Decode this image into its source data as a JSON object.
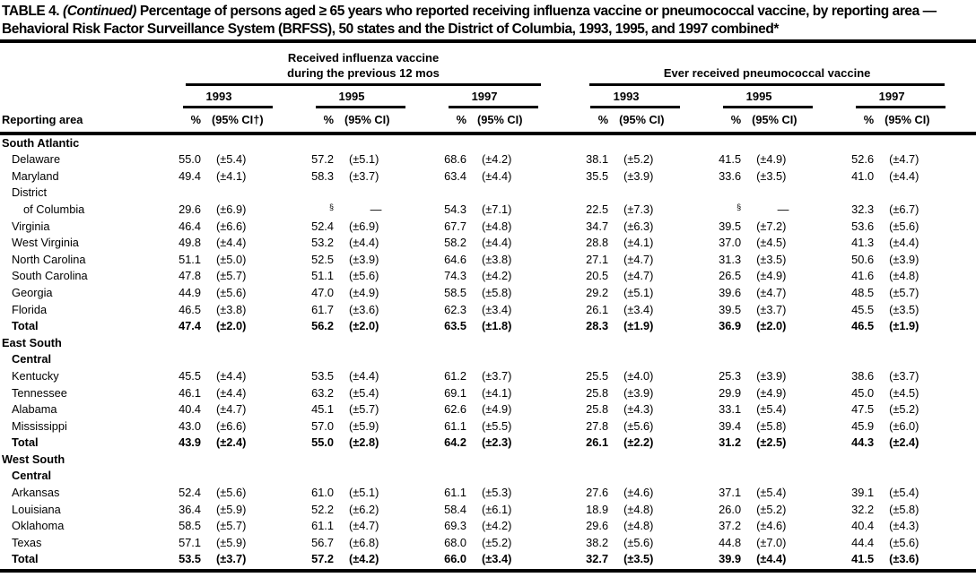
{
  "title": {
    "prefix": "TABLE 4.",
    "continued": "(Continued)",
    "rest": "Percentage of persons aged ≥ 65 years who reported receiving influenza vaccine or pneumococcal vaccine, by reporting area — Behavioral Risk Factor Surveillance System (BRFSS), 50 states and the District of Columbia, 1993, 1995, and 1997 combined*"
  },
  "header": {
    "reporting_area_label": "Reporting area",
    "pct_label": "%",
    "groups": [
      {
        "title_lines": [
          "Received influenza vaccine",
          "during the previous 12 mos"
        ],
        "years": [
          "1993",
          "1995",
          "1997"
        ],
        "ci_labels": [
          "(95% CI†)",
          "(95% CI)",
          "(95% CI)"
        ]
      },
      {
        "title_lines": [
          "Ever received pneumococcal vaccine"
        ],
        "years": [
          "1993",
          "1995",
          "1997"
        ],
        "ci_labels": [
          "(95% CI)",
          "(95% CI)",
          "(95% CI)"
        ]
      }
    ]
  },
  "footnote_symbols": {
    "missing": "§",
    "dash": "—"
  },
  "rows": [
    {
      "t": "sec",
      "label": "South Atlantic"
    },
    {
      "t": "state",
      "label": "Delaware",
      "c": [
        "55.0",
        "(±5.4)",
        "57.2",
        "(±5.1)",
        "68.6",
        "(±4.2)",
        "38.1",
        "(±5.2)",
        "41.5",
        "(±4.9)",
        "52.6",
        "(±4.7)"
      ]
    },
    {
      "t": "state",
      "label": "Maryland",
      "c": [
        "49.4",
        "(±4.1)",
        "58.3",
        "(±3.7)",
        "63.4",
        "(±4.4)",
        "35.5",
        "(±3.9)",
        "33.6",
        "(±3.5)",
        "41.0",
        "(±4.4)"
      ]
    },
    {
      "t": "lbl",
      "label": "District"
    },
    {
      "t": "state",
      "label": "of Columbia",
      "ind": 2,
      "c": [
        "29.6",
        "(±6.9)",
        "§",
        "—",
        "54.3",
        "(±7.1)",
        "22.5",
        "(±7.3)",
        "§",
        "—",
        "32.3",
        "(±6.7)"
      ]
    },
    {
      "t": "state",
      "label": "Virginia",
      "c": [
        "46.4",
        "(±6.6)",
        "52.4",
        "(±6.9)",
        "67.7",
        "(±4.8)",
        "34.7",
        "(±6.3)",
        "39.5",
        "(±7.2)",
        "53.6",
        "(±5.6)"
      ]
    },
    {
      "t": "state",
      "label": "West Virginia",
      "c": [
        "49.8",
        "(±4.4)",
        "53.2",
        "(±4.4)",
        "58.2",
        "(±4.4)",
        "28.8",
        "(±4.1)",
        "37.0",
        "(±4.5)",
        "41.3",
        "(±4.4)"
      ]
    },
    {
      "t": "state",
      "label": "North Carolina",
      "c": [
        "51.1",
        "(±5.0)",
        "52.5",
        "(±3.9)",
        "64.6",
        "(±3.8)",
        "27.1",
        "(±4.7)",
        "31.3",
        "(±3.5)",
        "50.6",
        "(±3.9)"
      ]
    },
    {
      "t": "state",
      "label": "South Carolina",
      "c": [
        "47.8",
        "(±5.7)",
        "51.1",
        "(±5.6)",
        "74.3",
        "(±4.2)",
        "20.5",
        "(±4.7)",
        "26.5",
        "(±4.9)",
        "41.6",
        "(±4.8)"
      ]
    },
    {
      "t": "state",
      "label": "Georgia",
      "c": [
        "44.9",
        "(±5.6)",
        "47.0",
        "(±4.9)",
        "58.5",
        "(±5.8)",
        "29.2",
        "(±5.1)",
        "39.6",
        "(±4.7)",
        "48.5",
        "(±5.7)"
      ]
    },
    {
      "t": "state",
      "label": "Florida",
      "c": [
        "46.5",
        "(±3.8)",
        "61.7",
        "(±3.6)",
        "62.3",
        "(±3.4)",
        "26.1",
        "(±3.4)",
        "39.5",
        "(±3.7)",
        "45.5",
        "(±3.5)"
      ]
    },
    {
      "t": "total",
      "label": "Total",
      "c": [
        "47.4",
        "(±2.0)",
        "56.2",
        "(±2.0)",
        "63.5",
        "(±1.8)",
        "28.3",
        "(±1.9)",
        "36.9",
        "(±2.0)",
        "46.5",
        "(±1.9)"
      ]
    },
    {
      "t": "sec",
      "label": "East South"
    },
    {
      "t": "sec2",
      "label": "Central"
    },
    {
      "t": "state",
      "label": "Kentucky",
      "c": [
        "45.5",
        "(±4.4)",
        "53.5",
        "(±4.4)",
        "61.2",
        "(±3.7)",
        "25.5",
        "(±4.0)",
        "25.3",
        "(±3.9)",
        "38.6",
        "(±3.7)"
      ]
    },
    {
      "t": "state",
      "label": "Tennessee",
      "c": [
        "46.1",
        "(±4.4)",
        "63.2",
        "(±5.4)",
        "69.1",
        "(±4.1)",
        "25.8",
        "(±3.9)",
        "29.9",
        "(±4.9)",
        "45.0",
        "(±4.5)"
      ]
    },
    {
      "t": "state",
      "label": "Alabama",
      "c": [
        "40.4",
        "(±4.7)",
        "45.1",
        "(±5.7)",
        "62.6",
        "(±4.9)",
        "25.8",
        "(±4.3)",
        "33.1",
        "(±5.4)",
        "47.5",
        "(±5.2)"
      ]
    },
    {
      "t": "state",
      "label": "Mississippi",
      "c": [
        "43.0",
        "(±6.6)",
        "57.0",
        "(±5.9)",
        "61.1",
        "(±5.5)",
        "27.8",
        "(±5.6)",
        "39.4",
        "(±5.8)",
        "45.9",
        "(±6.0)"
      ]
    },
    {
      "t": "total",
      "label": "Total",
      "c": [
        "43.9",
        "(±2.4)",
        "55.0",
        "(±2.8)",
        "64.2",
        "(±2.3)",
        "26.1",
        "(±2.2)",
        "31.2",
        "(±2.5)",
        "44.3",
        "(±2.4)"
      ]
    },
    {
      "t": "sec",
      "label": "West South"
    },
    {
      "t": "sec2",
      "label": "Central"
    },
    {
      "t": "state",
      "label": "Arkansas",
      "c": [
        "52.4",
        "(±5.6)",
        "61.0",
        "(±5.1)",
        "61.1",
        "(±5.3)",
        "27.6",
        "(±4.6)",
        "37.1",
        "(±5.4)",
        "39.1",
        "(±5.4)"
      ]
    },
    {
      "t": "state",
      "label": "Louisiana",
      "c": [
        "36.4",
        "(±5.9)",
        "52.2",
        "(±6.2)",
        "58.4",
        "(±6.1)",
        "18.9",
        "(±4.8)",
        "26.0",
        "(±5.2)",
        "32.2",
        "(±5.8)"
      ]
    },
    {
      "t": "state",
      "label": "Oklahoma",
      "c": [
        "58.5",
        "(±5.7)",
        "61.1",
        "(±4.7)",
        "69.3",
        "(±4.2)",
        "29.6",
        "(±4.8)",
        "37.2",
        "(±4.6)",
        "40.4",
        "(±4.3)"
      ]
    },
    {
      "t": "state",
      "label": "Texas",
      "c": [
        "57.1",
        "(±5.9)",
        "56.7",
        "(±6.8)",
        "68.0",
        "(±5.2)",
        "38.2",
        "(±5.6)",
        "44.8",
        "(±7.0)",
        "44.4",
        "(±5.6)"
      ]
    },
    {
      "t": "total",
      "label": "Total",
      "c": [
        "53.5",
        "(±3.7)",
        "57.2",
        "(±4.2)",
        "66.0",
        "(±3.4)",
        "32.7",
        "(±3.5)",
        "39.9",
        "(±4.4)",
        "41.5",
        "(±3.6)"
      ]
    }
  ]
}
